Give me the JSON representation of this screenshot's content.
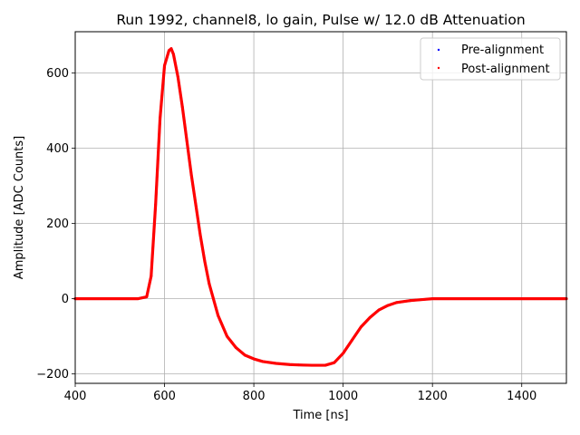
{
  "chart_data": {
    "type": "scatter",
    "title": "Run 1992, channel8, lo gain, Pulse w/ 12.0 dB Attenuation",
    "xlabel": "Time [ns]",
    "ylabel": "Amplitude [ADC Counts]",
    "xlim": [
      400,
      1500
    ],
    "ylim": [
      -225,
      710
    ],
    "xticks": [
      400,
      600,
      800,
      1000,
      1200,
      1400
    ],
    "yticks": [
      -200,
      0,
      200,
      400,
      600
    ],
    "grid": true,
    "legend_position": "top-right",
    "series": [
      {
        "name": "Pre-alignment",
        "color": "#0000ff",
        "x": [
          400,
          450,
          500,
          540,
          560,
          570,
          580,
          590,
          600,
          610,
          615,
          620,
          630,
          640,
          650,
          660,
          670,
          680,
          690,
          700,
          720,
          740,
          760,
          780,
          800,
          820,
          850,
          880,
          900,
          930,
          960,
          980,
          1000,
          1020,
          1040,
          1060,
          1080,
          1100,
          1120,
          1150,
          1180,
          1200,
          1250,
          1300,
          1350,
          1400,
          1450,
          1500
        ],
        "y": [
          0,
          0,
          0,
          0,
          5,
          60,
          250,
          480,
          620,
          660,
          665,
          650,
          590,
          510,
          420,
          330,
          250,
          170,
          100,
          40,
          -45,
          -100,
          -130,
          -150,
          -160,
          -167,
          -172,
          -175,
          -176,
          -177,
          -177,
          -170,
          -145,
          -110,
          -75,
          -50,
          -30,
          -18,
          -10,
          -5,
          -2,
          0,
          0,
          0,
          0,
          0,
          0,
          0
        ]
      },
      {
        "name": "Post-alignment",
        "color": "#ff0000",
        "x": [
          400,
          450,
          500,
          540,
          560,
          570,
          580,
          590,
          600,
          610,
          615,
          620,
          630,
          640,
          650,
          660,
          670,
          680,
          690,
          700,
          720,
          740,
          760,
          780,
          800,
          820,
          850,
          880,
          900,
          930,
          960,
          980,
          1000,
          1020,
          1040,
          1060,
          1080,
          1100,
          1120,
          1150,
          1180,
          1200,
          1250,
          1300,
          1350,
          1400,
          1450,
          1500
        ],
        "y": [
          0,
          0,
          0,
          0,
          5,
          60,
          250,
          480,
          620,
          660,
          665,
          650,
          590,
          510,
          420,
          330,
          250,
          170,
          100,
          40,
          -45,
          -100,
          -130,
          -150,
          -160,
          -167,
          -172,
          -175,
          -176,
          -177,
          -177,
          -170,
          -145,
          -110,
          -75,
          -50,
          -30,
          -18,
          -10,
          -5,
          -2,
          0,
          0,
          0,
          0,
          0,
          0,
          0
        ]
      }
    ]
  }
}
